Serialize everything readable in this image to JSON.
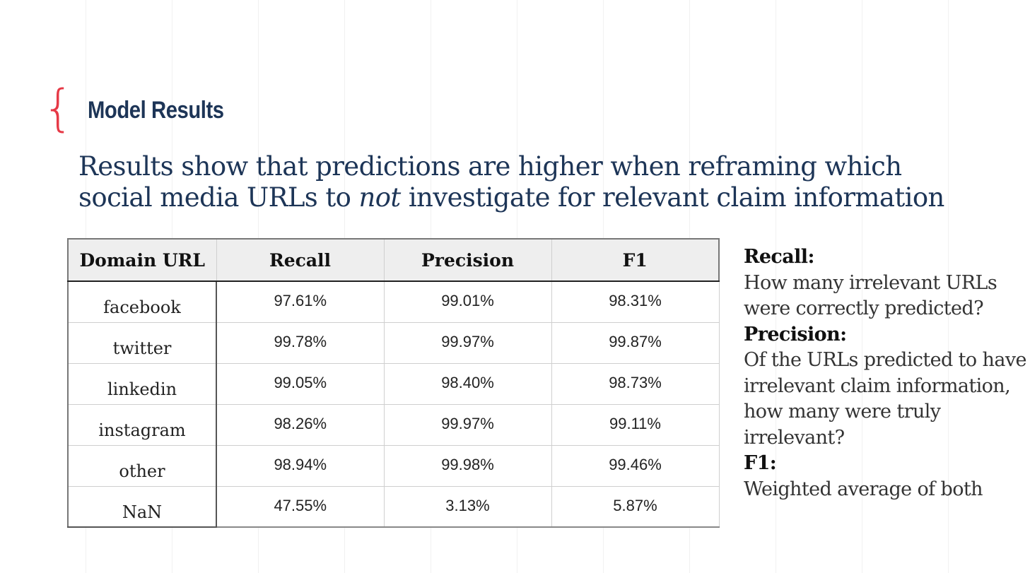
{
  "slide": {
    "title": "Model Results",
    "subtitle_part1": "Results show that predictions are higher when reframing which social media URLs to ",
    "subtitle_emphasis": "not",
    "subtitle_part2": " investigate for relevant claim information"
  },
  "table": {
    "headers": [
      "Domain URL",
      "Recall",
      "Precision",
      "F1"
    ],
    "rows": [
      {
        "domain": "facebook",
        "recall": "97.61%",
        "precision": "99.01%",
        "f1": "98.31%"
      },
      {
        "domain": "twitter",
        "recall": "99.78%",
        "precision": "99.97%",
        "f1": "99.87%"
      },
      {
        "domain": "linkedin",
        "recall": "99.05%",
        "precision": "98.40%",
        "f1": "98.73%"
      },
      {
        "domain": "instagram",
        "recall": "98.26%",
        "precision": "99.97%",
        "f1": "99.11%"
      },
      {
        "domain": "other",
        "recall": "98.94%",
        "precision": "99.98%",
        "f1": "99.46%"
      },
      {
        "domain": "NaN",
        "recall": "47.55%",
        "precision": "3.13%",
        "f1": "5.87%"
      }
    ]
  },
  "definitions": [
    {
      "term": "Recall:",
      "desc": "How many irrelevant URLs were correctly predicted?"
    },
    {
      "term": "Precision:",
      "desc": "Of the URLs predicted to have irrelevant claim information, how many were truly irrelevant?"
    },
    {
      "term": "F1:",
      "desc": "Weighted average of both"
    }
  ],
  "colors": {
    "accent": "#e63946",
    "title": "#1d3557",
    "header_bg": "#eeeeee"
  },
  "icons": {
    "brace": "left-curly-brace-icon"
  }
}
